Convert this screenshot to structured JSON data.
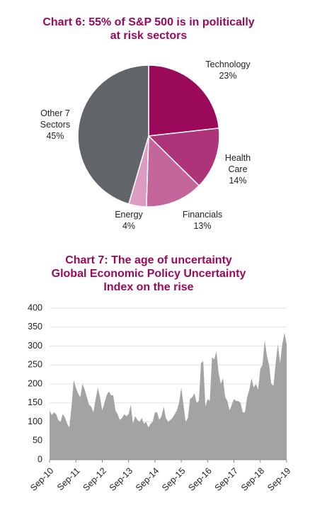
{
  "chart_data": [
    {
      "type": "pie",
      "title": "Chart 6: 55% of S&P 500 is in politically at risk sectors",
      "categories": [
        "Technology",
        "Health Care",
        "Financials",
        "Energy",
        "Other 7 Sectors"
      ],
      "values": [
        23,
        14,
        13,
        4,
        45
      ],
      "value_labels": [
        "23%",
        "14%",
        "13%",
        "4%",
        "45%"
      ],
      "colors": [
        "#9b0a5a",
        "#ae3479",
        "#c4659c",
        "#dc9cc1",
        "#616468"
      ]
    },
    {
      "type": "area",
      "title": "Chart 7: The age of uncertainty\nGlobal Economic Policy Uncertainty\nIndex on the rise",
      "categories": [
        "Sep-10",
        null,
        null,
        null,
        null,
        null,
        null,
        null,
        null,
        null,
        null,
        null,
        "Sep-11",
        null,
        null,
        null,
        null,
        null,
        null,
        null,
        null,
        null,
        null,
        null,
        "Sep-12",
        null,
        null,
        null,
        null,
        null,
        null,
        null,
        null,
        null,
        null,
        null,
        "Sep-13",
        null,
        null,
        null,
        null,
        null,
        null,
        null,
        null,
        null,
        null,
        null,
        "Sep-14",
        null,
        null,
        null,
        null,
        null,
        null,
        null,
        null,
        null,
        null,
        null,
        "Sep-15",
        null,
        null,
        null,
        null,
        null,
        null,
        null,
        null,
        null,
        null,
        null,
        "Sep-16",
        null,
        null,
        null,
        null,
        null,
        null,
        null,
        null,
        null,
        null,
        null,
        "Sep-17",
        null,
        null,
        null,
        null,
        null,
        null,
        null,
        null,
        null,
        null,
        null,
        "Sep-18",
        null,
        null,
        null,
        null,
        null,
        null,
        null,
        null,
        null,
        null,
        null,
        "Sep-19"
      ],
      "values": [
        130,
        118,
        125,
        120,
        105,
        100,
        120,
        112,
        95,
        85,
        140,
        210,
        190,
        175,
        165,
        200,
        185,
        165,
        145,
        140,
        125,
        160,
        190,
        165,
        130,
        150,
        170,
        180,
        170,
        170,
        130,
        120,
        105,
        110,
        120,
        115,
        120,
        145,
        95,
        115,
        105,
        100,
        110,
        95,
        100,
        85,
        95,
        100,
        125,
        125,
        105,
        115,
        140,
        110,
        100,
        105,
        110,
        120,
        130,
        150,
        190,
        145,
        100,
        110,
        160,
        165,
        175,
        150,
        155,
        255,
        260,
        140,
        160,
        155,
        270,
        265,
        285,
        230,
        200,
        215,
        165,
        155,
        130,
        145,
        160,
        155,
        155,
        150,
        125,
        125,
        165,
        185,
        215,
        190,
        200,
        185,
        240,
        250,
        315,
        275,
        250,
        200,
        195,
        255,
        305,
        255,
        305,
        335,
        305
      ],
      "color": "#a3a3a3",
      "ylim": [
        0,
        400
      ],
      "yticks": [
        0,
        50,
        100,
        150,
        200,
        250,
        300,
        350,
        400
      ],
      "grid": true
    }
  ]
}
